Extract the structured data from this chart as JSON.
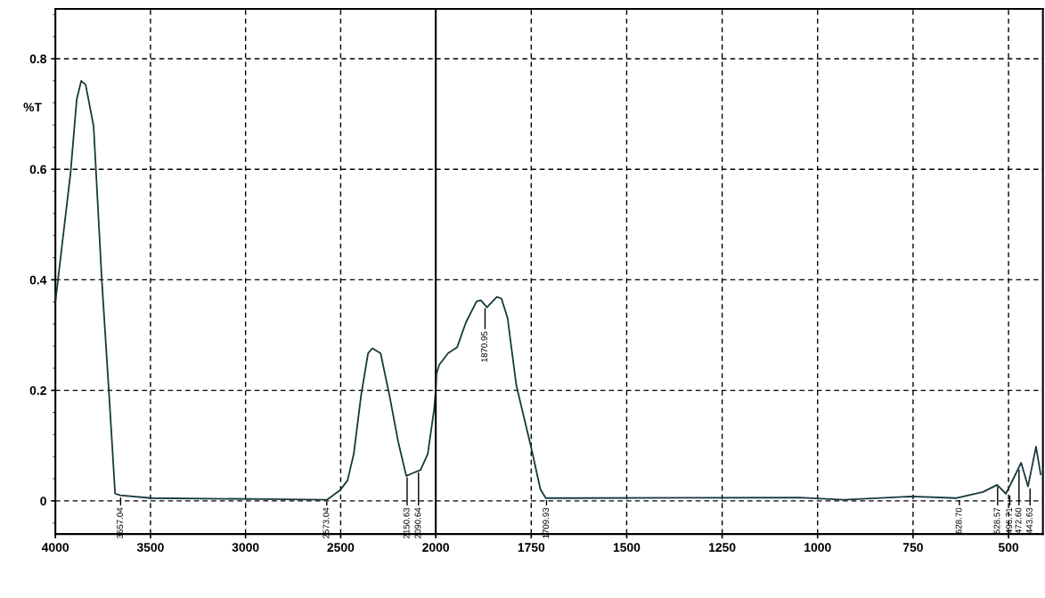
{
  "chart_data": [
    {
      "type": "line",
      "ylabel": "%T",
      "x": [
        4000,
        3920,
        3888,
        3864,
        3841,
        3799,
        3756,
        3719,
        3686,
        3658,
        3494,
        2885,
        2571,
        2501,
        2464,
        2431,
        2393,
        2356,
        2333,
        2290,
        2243,
        2197,
        2155,
        2122,
        2080,
        2042,
        2009,
        2000
      ],
      "series": [
        {
          "color": "#173a3c",
          "values": [
            0.36,
            0.594,
            0.726,
            0.76,
            0.753,
            0.678,
            0.4,
            0.2,
            0.013,
            0.01,
            0.005,
            0.003,
            0.002,
            0.02,
            0.037,
            0.085,
            0.19,
            0.267,
            0.276,
            0.267,
            0.19,
            0.106,
            0.045,
            0.05,
            0.056,
            0.085,
            0.165,
            0.2
          ]
        }
      ],
      "xlim": [
        4000,
        2000
      ],
      "xticks": [
        4000,
        3500,
        3000,
        2500
      ],
      "ylim": [
        -0.06,
        0.89
      ],
      "yticks": [
        0,
        0.2,
        0.4,
        0.6,
        0.8
      ],
      "grid": true,
      "marker": "none",
      "line_style": "solid",
      "annotations": [
        {
          "text": "3657.04",
          "x": 3657.04,
          "y": 0.01
        },
        {
          "text": "2573.04",
          "x": 2573.04,
          "y": 0.002
        },
        {
          "text": "2150.63",
          "x": 2150.63,
          "y": 0.046
        },
        {
          "text": "2090.64",
          "x": 2090.64,
          "y": 0.055
        }
      ]
    },
    {
      "type": "line",
      "x": [
        2000,
        1998,
        1991,
        1968,
        1944,
        1921,
        1893,
        1882,
        1866,
        1840,
        1828,
        1812,
        1789,
        1750,
        1726,
        1712,
        1644,
        1047,
        931,
        752,
        636,
        567,
        530,
        507,
        486,
        467,
        449,
        428,
        416
      ],
      "series": [
        {
          "color": "#173a3c",
          "values": [
            0.2,
            0.23,
            0.246,
            0.267,
            0.278,
            0.323,
            0.361,
            0.363,
            0.35,
            0.369,
            0.366,
            0.331,
            0.209,
            0.096,
            0.021,
            0.005,
            0.005,
            0.006,
            0.002,
            0.008,
            0.005,
            0.016,
            0.029,
            0.013,
            0.042,
            0.069,
            0.026,
            0.098,
            0.048
          ]
        }
      ],
      "xlim": [
        2000,
        410
      ],
      "xticks": [
        2000,
        1750,
        1500,
        1250,
        1000,
        750,
        500
      ],
      "ylim": [
        -0.06,
        0.89
      ],
      "yticks": [
        0,
        0.2,
        0.4,
        0.6,
        0.8
      ],
      "tick_labels": "x",
      "grid": true,
      "marker": "none",
      "line_style": "solid",
      "annotations": [
        {
          "text": "1870.95",
          "x": 1870.95,
          "y": 0.352
        },
        {
          "text": "1709.93",
          "x": 1709.93,
          "y": 0.005
        },
        {
          "text": "628.70",
          "x": 628.7,
          "y": 0.005
        },
        {
          "text": "528.57",
          "x": 528.57,
          "y": 0.029
        },
        {
          "text": "496.71",
          "x": 496.71,
          "y": 0.013
        },
        {
          "text": "472.60",
          "x": 472.6,
          "y": 0.06
        },
        {
          "text": "443.63",
          "x": 443.63,
          "y": 0.026
        }
      ]
    }
  ]
}
